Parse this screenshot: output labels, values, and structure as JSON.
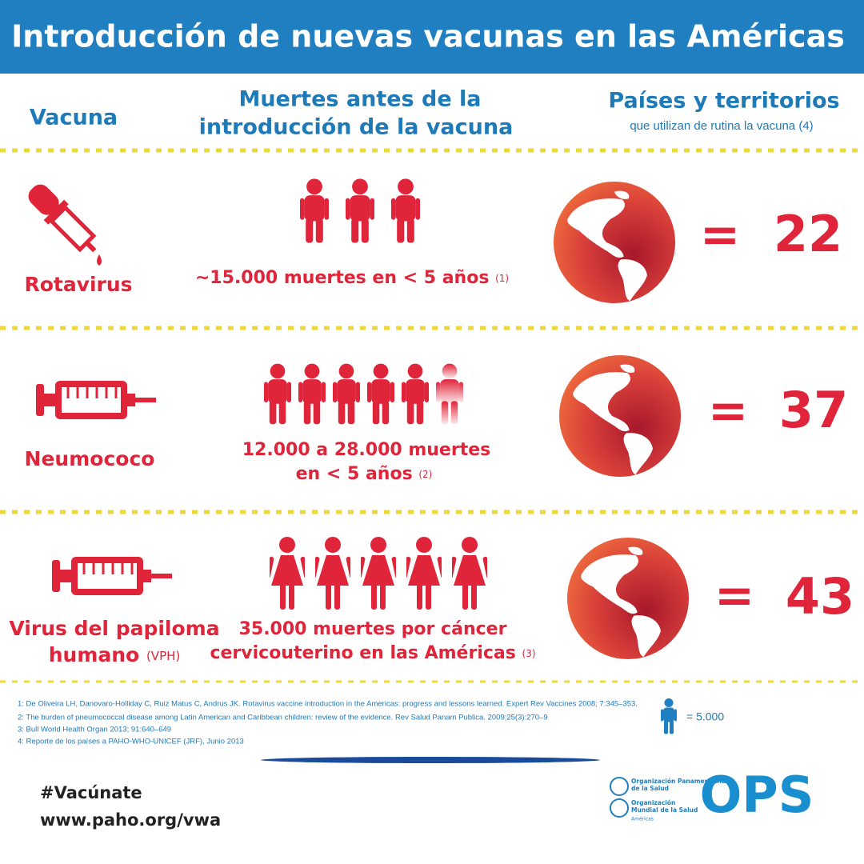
{
  "header": {
    "title": "Introducción de nuevas vacunas en las Américas"
  },
  "columns": {
    "vaccine": "Vacuna",
    "deaths": [
      "Muertes antes de la",
      "introducción de la vacuna"
    ],
    "countries": "Países y territorios",
    "countries_note": "que utilizan de rutina la vacuna (4)"
  },
  "equals_sign": "=",
  "rows": [
    {
      "name": [
        "Rotavirus"
      ],
      "deaths": [
        "~15.000 muertes en < 5 años"
      ],
      "reference": "(1)",
      "count": "22"
    },
    {
      "name": [
        "Neumococo"
      ],
      "deaths": [
        "12.000 a 28.000 muertes",
        "en < 5 años"
      ],
      "reference": "(2)",
      "count": "37"
    },
    {
      "name": [
        "Virus del papiloma",
        "humano"
      ],
      "name_note": "(VPH)",
      "deaths": [
        "35.000 muertes por cáncer",
        "cervicouterino en las Américas"
      ],
      "reference": "(3)",
      "count": "43"
    }
  ],
  "footnotes": [
    "1: De Oliveira LH, Danovaro-Holliday C, Ruiz Matus C, Andrus JK. Rotavirus vaccine introduction in the Americas: progress and lessons learned. Expert Rev Vaccines 2008; 7:345–353.",
    "2: The burden of pneumococcal disease among Latin American and Caribbean children: review of the evidence. Rev Salud Panam Publica. 2009;25(3):270–9",
    "3: Bull World Health Organ 2013; 91:640–649",
    "4: Reporte de los países a PAHO-WHO-UNICEF (JRF), Junio 2013"
  ],
  "legend": "= 5.000",
  "footer": {
    "hashtag": "#Vacúnate",
    "url": "www.paho.org/vwa",
    "logo": [
      "Organización Panamericana",
      "de la Salud",
      "Organización",
      "Mundial de la Salud",
      "Américas"
    ],
    "acronym": "OPS"
  }
}
